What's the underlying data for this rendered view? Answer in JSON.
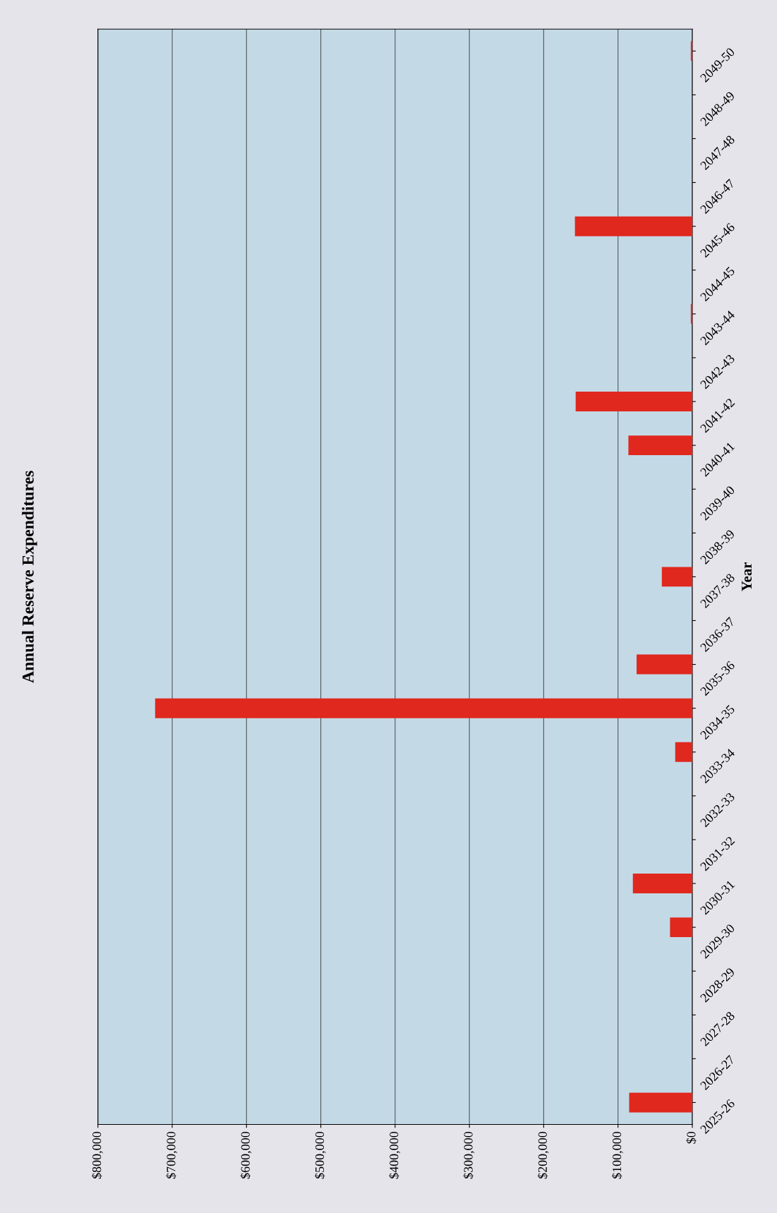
{
  "chart_data": {
    "type": "bar",
    "orientation": "horizontal",
    "title": "Annual Reserve Expenditures",
    "ylabel": "Year",
    "categories": [
      "2049-50",
      "2048-49",
      "2047-48",
      "2046-47",
      "2045-46",
      "2044-45",
      "2043-44",
      "2042-43",
      "2041-42",
      "2040-41",
      "2039-40",
      "2038-39",
      "2037-38",
      "2036-37",
      "2035-36",
      "2034-35",
      "2033-34",
      "2032-33",
      "2031-32",
      "2030-31",
      "2029-30",
      "2028-29",
      "2027-28",
      "2026-27",
      "2025-26"
    ],
    "values": [
      2000,
      0,
      0,
      0,
      158000,
      0,
      2000,
      0,
      157000,
      86000,
      0,
      0,
      41000,
      0,
      75000,
      723000,
      23000,
      0,
      0,
      80000,
      30000,
      0,
      0,
      0,
      85000
    ],
    "color": "#e0281e",
    "xlim": [
      800000,
      0
    ],
    "xticks": [
      {
        "value": 800000,
        "label": "$800,000"
      },
      {
        "value": 700000,
        "label": "$700,000"
      },
      {
        "value": 600000,
        "label": "$600,000"
      },
      {
        "value": 500000,
        "label": "$500,000"
      },
      {
        "value": 400000,
        "label": "$400,000"
      },
      {
        "value": 300000,
        "label": "$300,000"
      },
      {
        "value": 200000,
        "label": "$200,000"
      },
      {
        "value": 100000,
        "label": "$100,000"
      },
      {
        "value": 0,
        "label": "$0"
      }
    ],
    "grid": "x"
  }
}
